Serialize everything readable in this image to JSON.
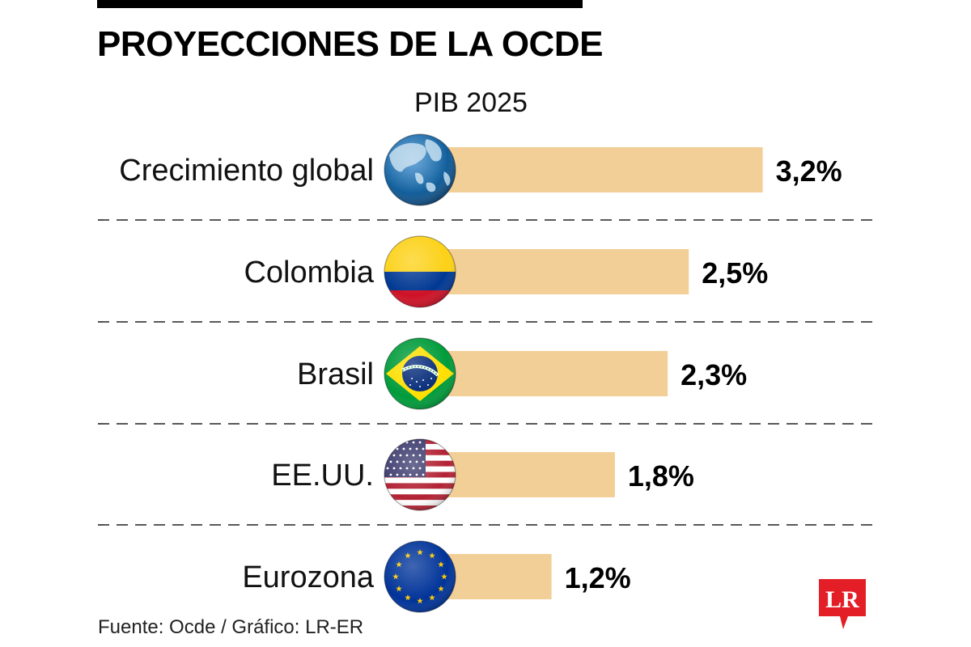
{
  "header": {
    "title": "PROYECCIONES DE LA OCDE",
    "subtitle": "PIB 2025"
  },
  "footer": {
    "source": "Fuente: Ocde / Gráfico: LR-ER",
    "logo_text": "LR"
  },
  "colors": {
    "bar": "#f3cf98",
    "logo_red": "#e41e26",
    "divider": "#222222"
  },
  "chart_data": {
    "type": "bar",
    "orientation": "horizontal",
    "title": "PROYECCIONES DE LA OCDE",
    "subtitle": "PIB 2025",
    "xlabel": "",
    "ylabel": "",
    "unit": "%",
    "categories": [
      "Crecimiento global",
      "Colombia",
      "Brasil",
      "EE.UU.",
      "Eurozona"
    ],
    "values": [
      3.2,
      2.5,
      2.3,
      1.8,
      1.2
    ],
    "value_labels": [
      "3,2%",
      "2,5%",
      "2,3%",
      "1,8%",
      "1,2%"
    ],
    "icons": [
      "globe-icon",
      "colombia-flag-icon",
      "brazil-flag-icon",
      "usa-flag-icon",
      "eu-flag-icon"
    ],
    "xlim": [
      0,
      3.2
    ],
    "grid": false,
    "legend": "none",
    "source": "Fuente: Ocde / Gráfico: LR-ER"
  }
}
